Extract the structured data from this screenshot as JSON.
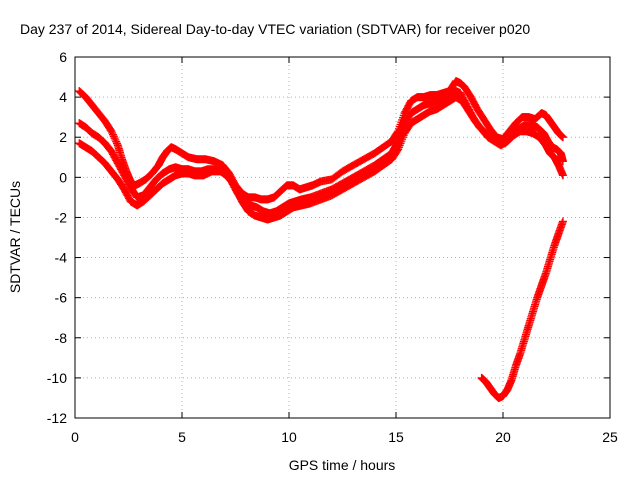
{
  "chart_data": {
    "type": "scatter",
    "title": "Day 237 of 2014, Sidereal Day-to-day VTEC variation (SDTVAR) for receiver p020",
    "xlabel": "GPS time / hours",
    "ylabel": "SDTVAR / TECUs",
    "xlim": [
      0,
      25
    ],
    "ylim": [
      -12,
      6
    ],
    "x_ticks": [
      0,
      5,
      10,
      15,
      20,
      25
    ],
    "y_ticks": [
      -12,
      -10,
      -8,
      -6,
      -4,
      -2,
      0,
      2,
      4,
      6
    ],
    "grid": true,
    "marker": "+",
    "marker_color": "#ff0000",
    "series": [
      {
        "points": [
          [
            0.2,
            4.3
          ],
          [
            0.5,
            4.0
          ],
          [
            0.8,
            3.6
          ],
          [
            1.1,
            3.2
          ],
          [
            1.4,
            2.8
          ],
          [
            1.7,
            2.3
          ],
          [
            2.0,
            1.6
          ],
          [
            2.2,
            0.9
          ],
          [
            2.4,
            0.3
          ],
          [
            2.6,
            -0.2
          ],
          [
            2.8,
            -0.4
          ],
          [
            3.0,
            -0.3
          ],
          [
            3.3,
            -0.1
          ],
          [
            3.6,
            0.2
          ],
          [
            3.9,
            0.6
          ],
          [
            4.1,
            1.0
          ],
          [
            4.3,
            1.3
          ],
          [
            4.5,
            1.5
          ],
          [
            4.7,
            1.4
          ],
          [
            5.0,
            1.2
          ],
          [
            5.3,
            1.0
          ],
          [
            5.7,
            0.9
          ],
          [
            6.1,
            0.9
          ],
          [
            6.5,
            0.8
          ],
          [
            6.9,
            0.6
          ],
          [
            7.2,
            0.2
          ],
          [
            7.5,
            -0.4
          ],
          [
            7.8,
            -0.8
          ],
          [
            8.1,
            -1.0
          ],
          [
            8.4,
            -1.0
          ],
          [
            8.7,
            -1.1
          ],
          [
            9.0,
            -1.1
          ],
          [
            9.3,
            -1.0
          ],
          [
            9.6,
            -0.7
          ],
          [
            9.9,
            -0.4
          ],
          [
            10.2,
            -0.4
          ],
          [
            10.5,
            -0.6
          ],
          [
            10.8,
            -0.5
          ],
          [
            11.1,
            -0.4
          ],
          [
            11.5,
            -0.2
          ],
          [
            12.0,
            -0.1
          ],
          [
            12.5,
            0.3
          ],
          [
            13.0,
            0.6
          ],
          [
            13.5,
            0.9
          ],
          [
            14.0,
            1.2
          ],
          [
            14.4,
            1.5
          ],
          [
            14.8,
            1.8
          ],
          [
            15.1,
            2.3
          ],
          [
            15.4,
            3.2
          ],
          [
            15.7,
            3.8
          ],
          [
            16.0,
            4.0
          ],
          [
            16.3,
            4.0
          ],
          [
            16.6,
            4.1
          ],
          [
            16.9,
            4.1
          ],
          [
            17.2,
            4.2
          ],
          [
            17.5,
            4.3
          ],
          [
            17.8,
            4.8
          ],
          [
            18.0,
            4.7
          ],
          [
            18.2,
            4.5
          ],
          [
            18.5,
            4.0
          ],
          [
            18.8,
            3.4
          ],
          [
            19.1,
            2.9
          ],
          [
            19.4,
            2.4
          ],
          [
            19.7,
            2.0
          ],
          [
            20.0,
            1.9
          ],
          [
            20.3,
            2.3
          ],
          [
            20.6,
            2.7
          ],
          [
            20.9,
            3.0
          ],
          [
            21.2,
            3.0
          ],
          [
            21.5,
            2.9
          ],
          [
            21.8,
            3.2
          ],
          [
            22.0,
            3.1
          ],
          [
            22.2,
            2.8
          ],
          [
            22.4,
            2.5
          ],
          [
            22.6,
            2.2
          ],
          [
            22.8,
            2.0
          ]
        ]
      },
      {
        "points": [
          [
            0.2,
            2.7
          ],
          [
            0.5,
            2.5
          ],
          [
            0.8,
            2.2
          ],
          [
            1.1,
            2.0
          ],
          [
            1.4,
            1.7
          ],
          [
            1.7,
            1.3
          ],
          [
            2.0,
            0.7
          ],
          [
            2.3,
            0.1
          ],
          [
            2.6,
            -0.5
          ],
          [
            2.9,
            -1.0
          ],
          [
            3.2,
            -0.9
          ],
          [
            3.5,
            -0.5
          ],
          [
            3.8,
            -0.1
          ],
          [
            4.1,
            0.2
          ],
          [
            4.4,
            0.4
          ],
          [
            4.7,
            0.5
          ],
          [
            5.0,
            0.4
          ],
          [
            5.3,
            0.4
          ],
          [
            5.6,
            0.3
          ],
          [
            5.9,
            0.3
          ],
          [
            6.2,
            0.4
          ],
          [
            6.6,
            0.4
          ],
          [
            7.0,
            0.2
          ],
          [
            7.3,
            -0.2
          ],
          [
            7.6,
            -0.8
          ],
          [
            7.9,
            -1.3
          ],
          [
            8.2,
            -1.4
          ],
          [
            8.5,
            -1.5
          ],
          [
            8.8,
            -1.7
          ],
          [
            9.1,
            -1.8
          ],
          [
            9.4,
            -1.7
          ],
          [
            9.7,
            -1.5
          ],
          [
            10.0,
            -1.3
          ],
          [
            10.3,
            -1.2
          ],
          [
            10.6,
            -1.1
          ],
          [
            11.0,
            -1.0
          ],
          [
            11.5,
            -0.8
          ],
          [
            12.0,
            -0.6
          ],
          [
            12.5,
            -0.3
          ],
          [
            13.0,
            0.0
          ],
          [
            13.5,
            0.3
          ],
          [
            14.0,
            0.6
          ],
          [
            14.4,
            0.9
          ],
          [
            14.8,
            1.2
          ],
          [
            15.1,
            1.8
          ],
          [
            15.4,
            2.7
          ],
          [
            15.7,
            3.2
          ],
          [
            16.0,
            3.4
          ],
          [
            16.3,
            3.6
          ],
          [
            16.6,
            3.7
          ],
          [
            16.9,
            3.8
          ],
          [
            17.2,
            3.9
          ],
          [
            17.5,
            4.0
          ],
          [
            17.8,
            4.3
          ],
          [
            18.0,
            4.2
          ],
          [
            18.3,
            3.6
          ],
          [
            18.6,
            3.0
          ],
          [
            18.9,
            2.5
          ],
          [
            19.2,
            2.2
          ],
          [
            19.5,
            1.9
          ],
          [
            19.8,
            1.7
          ],
          [
            20.1,
            1.7
          ],
          [
            20.4,
            2.0
          ],
          [
            20.7,
            2.4
          ],
          [
            21.0,
            2.6
          ],
          [
            21.3,
            2.6
          ],
          [
            21.6,
            2.5
          ],
          [
            21.9,
            2.2
          ],
          [
            22.1,
            1.8
          ],
          [
            22.3,
            1.5
          ],
          [
            22.5,
            1.4
          ],
          [
            22.7,
            1.2
          ],
          [
            22.8,
            0.8
          ]
        ]
      },
      {
        "points": [
          [
            0.2,
            1.7
          ],
          [
            0.5,
            1.5
          ],
          [
            0.8,
            1.3
          ],
          [
            1.1,
            1.0
          ],
          [
            1.4,
            0.7
          ],
          [
            1.7,
            0.3
          ],
          [
            2.0,
            -0.1
          ],
          [
            2.3,
            -0.6
          ],
          [
            2.6,
            -1.2
          ],
          [
            2.9,
            -1.4
          ],
          [
            3.2,
            -1.2
          ],
          [
            3.5,
            -0.9
          ],
          [
            3.8,
            -0.6
          ],
          [
            4.1,
            -0.3
          ],
          [
            4.4,
            -0.1
          ],
          [
            4.7,
            0.1
          ],
          [
            5.0,
            0.2
          ],
          [
            5.3,
            0.2
          ],
          [
            5.6,
            0.1
          ],
          [
            6.0,
            0.1
          ],
          [
            6.4,
            0.3
          ],
          [
            6.8,
            0.3
          ],
          [
            7.2,
            0.0
          ],
          [
            7.5,
            -0.5
          ],
          [
            7.8,
            -1.2
          ],
          [
            8.1,
            -1.7
          ],
          [
            8.4,
            -1.9
          ],
          [
            8.7,
            -2.0
          ],
          [
            9.0,
            -2.1
          ],
          [
            9.3,
            -2.0
          ],
          [
            9.6,
            -1.9
          ],
          [
            9.9,
            -1.7
          ],
          [
            10.2,
            -1.5
          ],
          [
            10.6,
            -1.4
          ],
          [
            11.0,
            -1.3
          ],
          [
            11.5,
            -1.1
          ],
          [
            12.0,
            -0.9
          ],
          [
            12.5,
            -0.6
          ],
          [
            13.0,
            -0.3
          ],
          [
            13.5,
            0.0
          ],
          [
            14.0,
            0.3
          ],
          [
            14.4,
            0.6
          ],
          [
            14.8,
            0.9
          ],
          [
            15.1,
            1.4
          ],
          [
            15.4,
            2.2
          ],
          [
            15.7,
            2.7
          ],
          [
            16.0,
            2.9
          ],
          [
            16.3,
            3.1
          ],
          [
            16.6,
            3.3
          ],
          [
            16.9,
            3.4
          ],
          [
            17.2,
            3.6
          ],
          [
            17.5,
            3.8
          ],
          [
            17.8,
            4.0
          ],
          [
            18.1,
            3.8
          ],
          [
            18.4,
            3.3
          ],
          [
            18.7,
            2.8
          ],
          [
            19.0,
            2.4
          ],
          [
            19.3,
            2.0
          ],
          [
            19.6,
            1.8
          ],
          [
            19.9,
            1.6
          ],
          [
            20.2,
            1.8
          ],
          [
            20.5,
            2.1
          ],
          [
            20.8,
            2.3
          ],
          [
            21.1,
            2.3
          ],
          [
            21.4,
            2.2
          ],
          [
            21.7,
            2.0
          ],
          [
            22.0,
            1.6
          ],
          [
            22.2,
            1.2
          ],
          [
            22.4,
            1.0
          ],
          [
            22.6,
            0.6
          ],
          [
            22.8,
            0.1
          ]
        ]
      },
      {
        "points": [
          [
            19.0,
            -10.0
          ],
          [
            19.2,
            -10.2
          ],
          [
            19.4,
            -10.5
          ],
          [
            19.6,
            -10.8
          ],
          [
            19.8,
            -11.0
          ],
          [
            20.0,
            -10.9
          ],
          [
            20.2,
            -10.6
          ],
          [
            20.4,
            -10.1
          ],
          [
            20.6,
            -9.4
          ],
          [
            20.8,
            -8.8
          ],
          [
            21.0,
            -8.1
          ],
          [
            21.2,
            -7.4
          ],
          [
            21.4,
            -6.7
          ],
          [
            21.6,
            -6.0
          ],
          [
            21.8,
            -5.4
          ],
          [
            22.0,
            -4.8
          ],
          [
            22.2,
            -4.1
          ],
          [
            22.4,
            -3.4
          ],
          [
            22.6,
            -2.8
          ],
          [
            22.8,
            -2.2
          ]
        ]
      }
    ]
  }
}
